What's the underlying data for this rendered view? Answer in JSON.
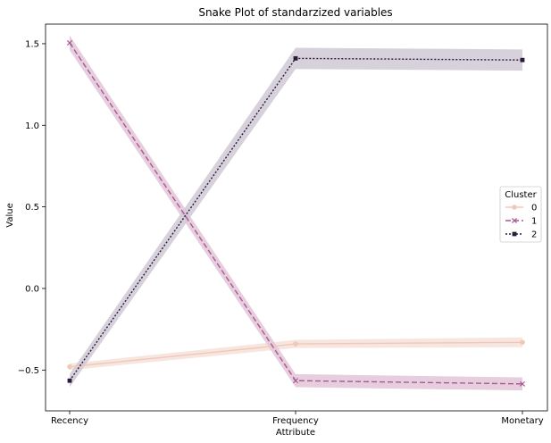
{
  "chart_data": {
    "type": "line",
    "title": "Snake Plot of standarzized variables",
    "xlabel": "Attribute",
    "ylabel": "Value",
    "categories": [
      "Recency",
      "Frequency",
      "Monetary"
    ],
    "ylim": [
      -0.75,
      1.62
    ],
    "yticks": [
      -0.5,
      0.0,
      0.5,
      1.0,
      1.5
    ],
    "ytick_labels": [
      "−0.5",
      "0.0",
      "0.5",
      "1.0",
      "1.5"
    ],
    "grid": false,
    "legend": {
      "title": "Cluster",
      "placement": "center-right"
    },
    "series": [
      {
        "name": "0",
        "values": [
          -0.48,
          -0.34,
          -0.33
        ],
        "band": [
          0.02,
          0.025,
          0.03
        ],
        "color": "#efc9b8",
        "band_color": "#f6e2d9",
        "dash": "",
        "marker": "circle"
      },
      {
        "name": "1",
        "values": [
          1.505,
          -0.565,
          -0.585
        ],
        "band": [
          0.045,
          0.04,
          0.04
        ],
        "color": "#a95a8f",
        "band_color": "#e3c6d8",
        "dash": "6,3",
        "marker": "x"
      },
      {
        "name": "2",
        "values": [
          -0.565,
          1.41,
          1.4
        ],
        "band": [
          0.04,
          0.065,
          0.065
        ],
        "color": "#2b1b3a",
        "band_color": "#cfc9d5",
        "dash": "2,2",
        "marker": "square"
      }
    ]
  }
}
